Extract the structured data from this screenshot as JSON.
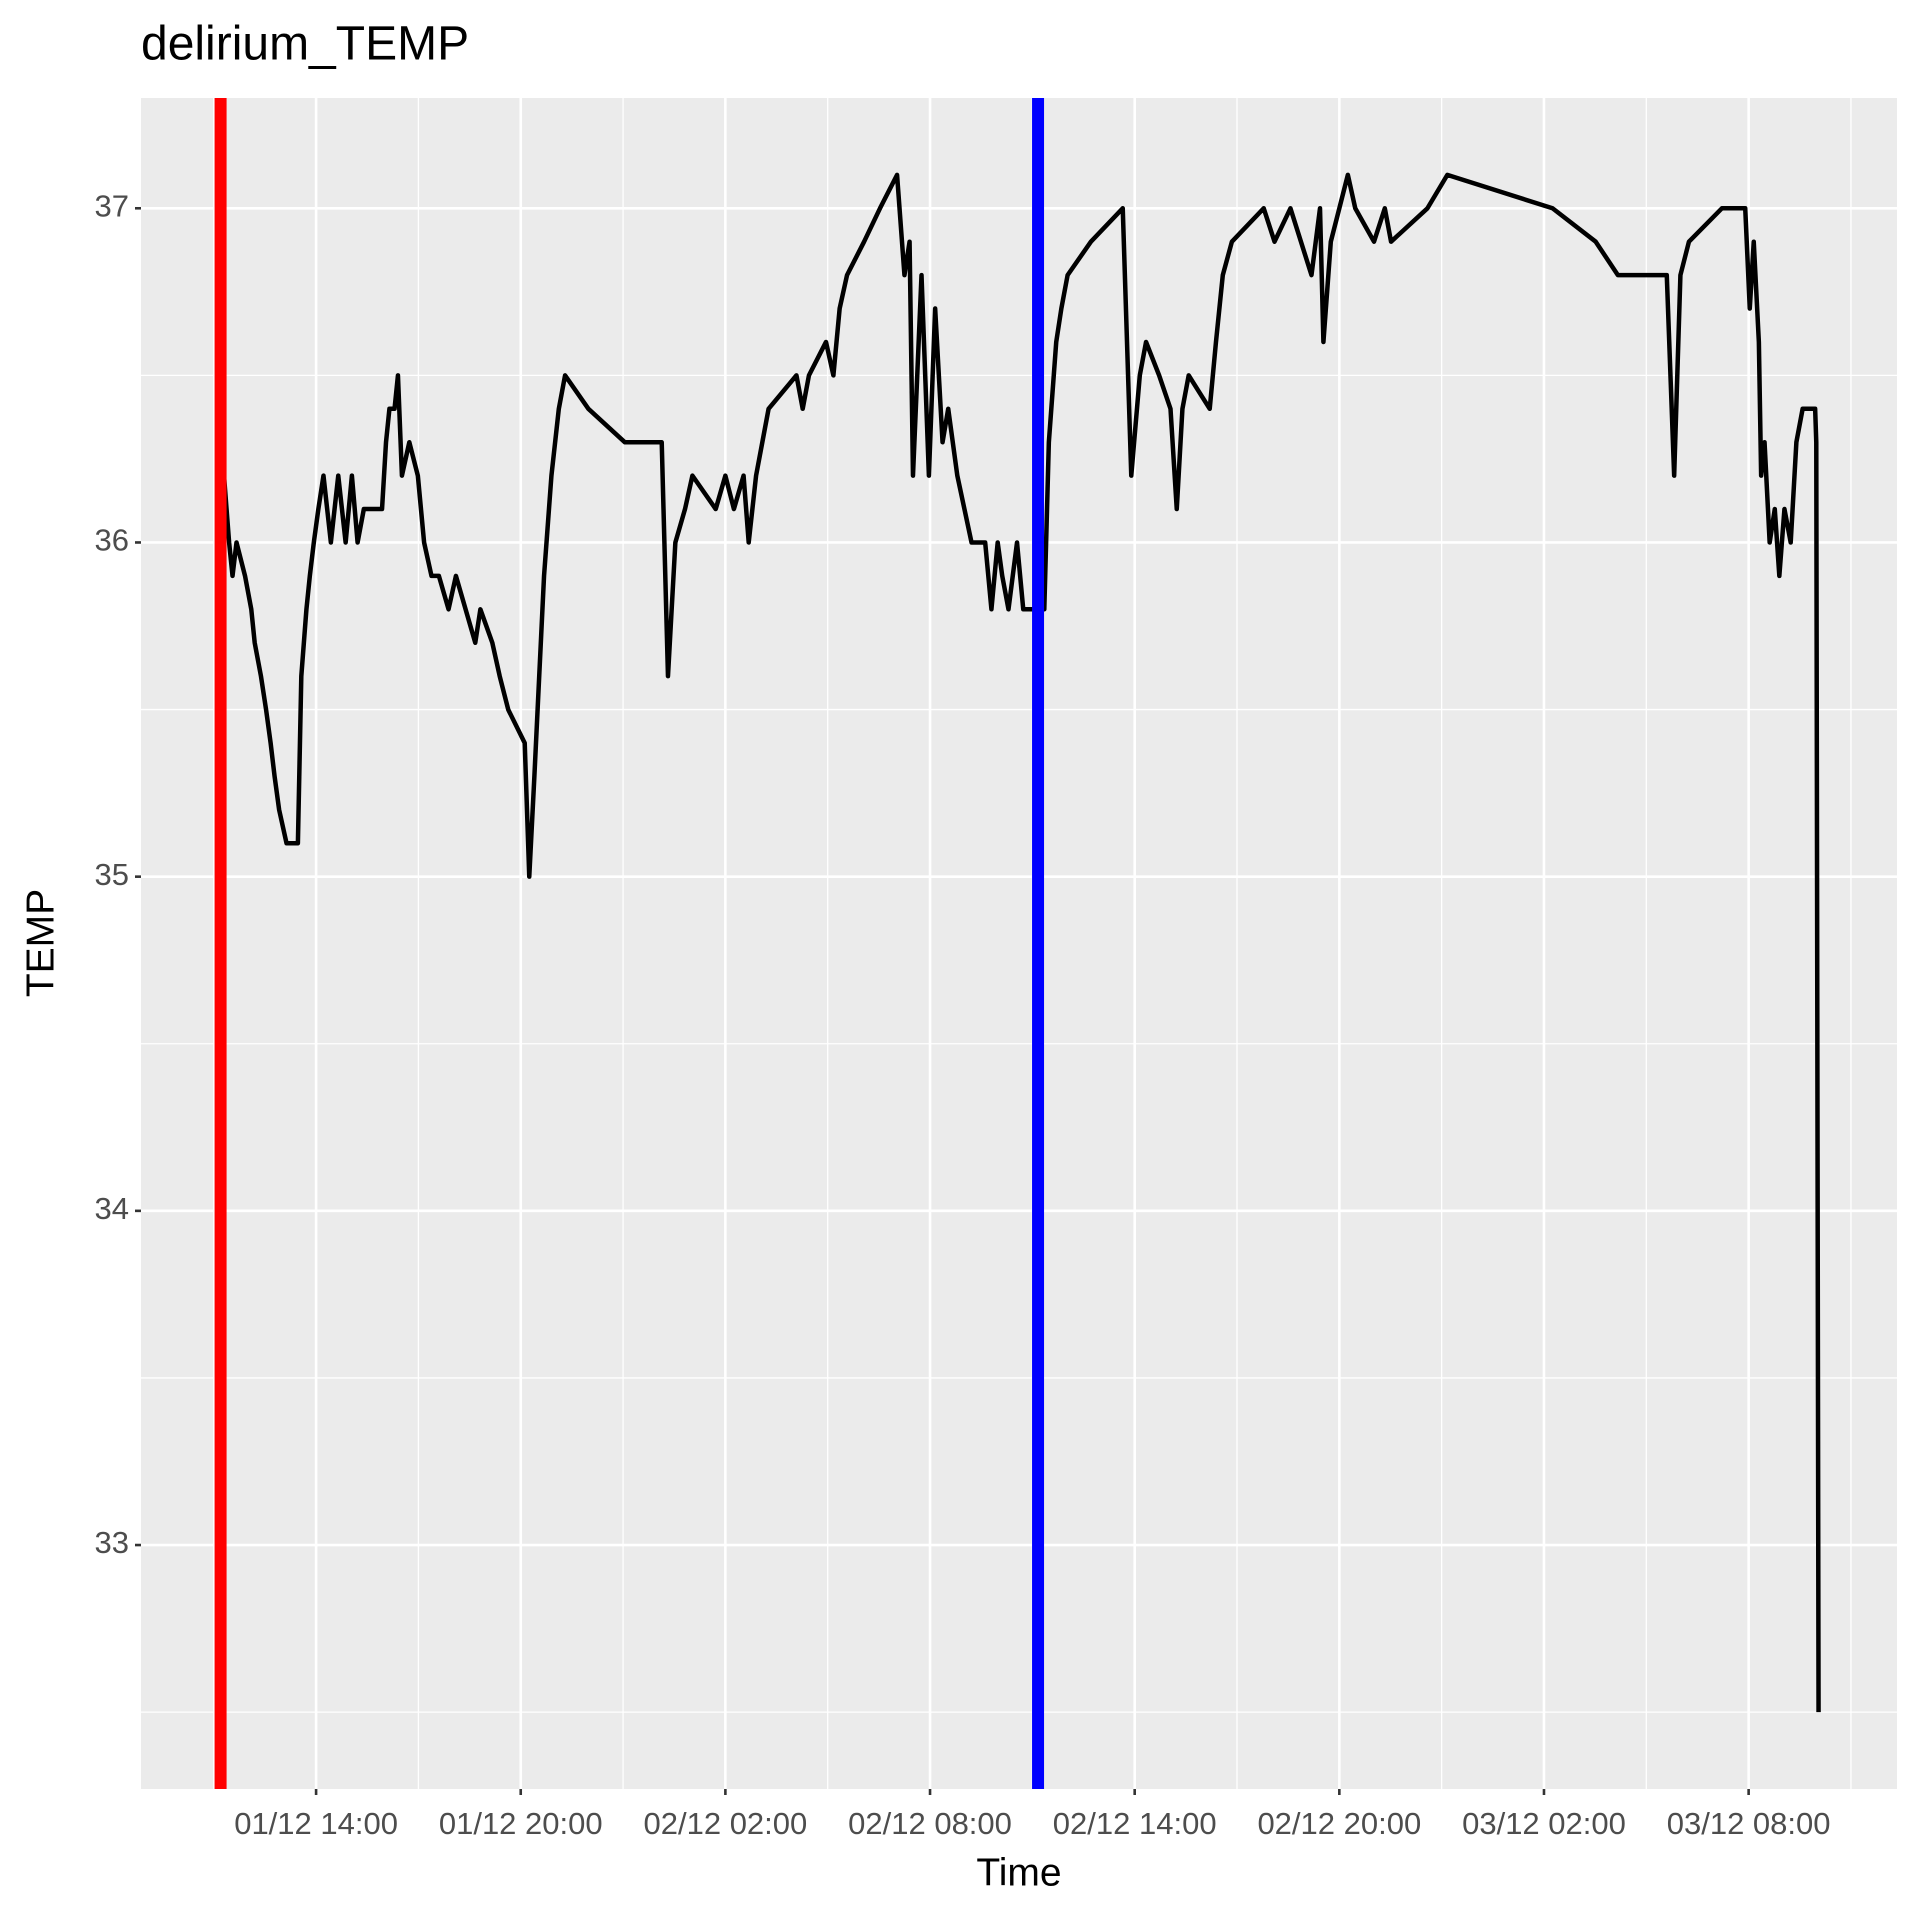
{
  "chart_data": {
    "type": "line",
    "title": "delirium_TEMP",
    "x_label": "Time",
    "y_label": "TEMP",
    "x": [
      "01/12 11:18",
      "01/12 11:27",
      "01/12 11:33",
      "01/12 11:40",
      "01/12 11:55",
      "01/12 12:06",
      "01/12 12:12",
      "01/12 12:23",
      "01/12 12:32",
      "01/12 12:40",
      "01/12 12:47",
      "01/12 12:55",
      "01/12 13:08",
      "01/12 13:28",
      "01/12 13:34",
      "01/12 13:43",
      "01/12 13:49",
      "01/12 13:56",
      "01/12 14:04",
      "01/12 14:13",
      "01/12 14:26",
      "01/12 14:39",
      "01/12 14:52",
      "01/12 15:03",
      "01/12 15:13",
      "01/12 15:24",
      "01/12 15:56",
      "01/12 16:03",
      "01/12 16:09",
      "01/12 16:18",
      "01/12 16:24",
      "01/12 16:31",
      "01/12 16:44",
      "01/12 16:59",
      "01/12 17:10",
      "01/12 17:23",
      "01/12 17:36",
      "01/12 17:53",
      "01/12 18:06",
      "01/12 18:40",
      "01/12 18:49",
      "01/12 19:10",
      "01/12 19:23",
      "01/12 19:38",
      "01/12 20:07",
      "01/12 20:15",
      "01/12 20:24",
      "01/12 20:41",
      "01/12 20:54",
      "01/12 21:07",
      "01/12 21:18",
      "01/12 21:59",
      "01/12 23:03",
      "02/12 00:08",
      "02/12 00:19",
      "02/12 00:32",
      "02/12 00:49",
      "02/12 01:02",
      "02/12 01:43",
      "02/12 02:00",
      "02/12 02:15",
      "02/12 02:32",
      "02/12 02:41",
      "02/12 02:54",
      "02/12 03:05",
      "02/12 03:16",
      "02/12 04:05",
      "02/12 04:16",
      "02/12 04:27",
      "02/12 04:57",
      "02/12 05:10",
      "02/12 05:21",
      "02/12 05:34",
      "02/12 06:04",
      "02/12 06:32",
      "02/12 07:02",
      "02/12 07:15",
      "02/12 07:24",
      "02/12 07:30",
      "02/12 07:45",
      "02/12 07:58",
      "02/12 08:09",
      "02/12 08:22",
      "02/12 08:32",
      "02/12 08:48",
      "02/12 09:13",
      "02/12 09:37",
      "02/12 09:48",
      "02/12 09:59",
      "02/12 10:07",
      "02/12 10:18",
      "02/12 10:33",
      "02/12 10:44",
      "02/12 11:10",
      "02/12 11:21",
      "02/12 11:29",
      "02/12 11:42",
      "02/12 11:51",
      "02/12 12:02",
      "02/12 12:43",
      "02/12 13:39",
      "02/12 13:54",
      "02/12 14:09",
      "02/12 14:20",
      "02/12 14:43",
      "02/12 15:03",
      "02/12 15:14",
      "02/12 15:24",
      "02/12 15:35",
      "02/12 16:12",
      "02/12 16:23",
      "02/12 16:35",
      "02/12 16:51",
      "02/12 17:47",
      "02/12 18:06",
      "02/12 18:34",
      "02/12 19:11",
      "02/12 19:26",
      "02/12 19:32",
      "02/12 19:45",
      "02/12 20:00",
      "02/12 20:15",
      "02/12 20:28",
      "02/12 21:01",
      "02/12 21:20",
      "02/12 21:31",
      "02/12 22:35",
      "02/12 23:10",
      "03/12 02:15",
      "03/12 03:31",
      "03/12 04:10",
      "03/12 05:36",
      "03/12 05:49",
      "03/12 06:00",
      "03/12 06:15",
      "03/12 07:13",
      "03/12 07:54",
      "03/12 08:02",
      "03/12 08:09",
      "03/12 08:18",
      "03/12 08:22",
      "03/12 08:28",
      "03/12 08:37",
      "03/12 08:46",
      "03/12 08:54",
      "03/12 09:03",
      "03/12 09:14",
      "03/12 09:24",
      "03/12 09:35",
      "03/12 09:57",
      "03/12 09:59",
      "03/12 10:01",
      "03/12 10:03"
    ],
    "values": [
      36.2,
      36.0,
      35.9,
      36.0,
      35.9,
      35.8,
      35.7,
      35.6,
      35.5,
      35.4,
      35.3,
      35.2,
      35.1,
      35.1,
      35.6,
      35.8,
      35.9,
      36.0,
      36.1,
      36.2,
      36.0,
      36.2,
      36.0,
      36.2,
      36.0,
      36.1,
      36.1,
      36.3,
      36.4,
      36.4,
      36.5,
      36.2,
      36.3,
      36.2,
      36.0,
      35.9,
      35.9,
      35.8,
      35.9,
      35.7,
      35.8,
      35.7,
      35.6,
      35.5,
      35.4,
      35.0,
      35.3,
      35.9,
      36.2,
      36.4,
      36.5,
      36.4,
      36.3,
      36.3,
      35.6,
      36.0,
      36.1,
      36.2,
      36.1,
      36.2,
      36.1,
      36.2,
      36.0,
      36.2,
      36.3,
      36.4,
      36.5,
      36.4,
      36.5,
      36.6,
      36.5,
      36.7,
      36.8,
      36.9,
      37.0,
      37.1,
      36.8,
      36.9,
      36.2,
      36.8,
      36.2,
      36.7,
      36.3,
      36.4,
      36.2,
      36.0,
      36.0,
      35.8,
      36.0,
      35.9,
      35.8,
      36.0,
      35.8,
      35.8,
      35.8,
      36.3,
      36.6,
      36.7,
      36.8,
      36.9,
      37.0,
      36.2,
      36.5,
      36.6,
      36.5,
      36.4,
      36.1,
      36.4,
      36.5,
      36.4,
      36.6,
      36.8,
      36.9,
      37.0,
      36.9,
      37.0,
      36.8,
      37.0,
      36.6,
      36.9,
      37.0,
      37.1,
      37.0,
      36.9,
      37.0,
      36.9,
      37.0,
      37.1,
      37.0,
      36.9,
      36.8,
      36.8,
      36.2,
      36.8,
      36.9,
      37.0,
      37.0,
      36.7,
      36.9,
      36.6,
      36.2,
      36.3,
      36.0,
      36.1,
      35.9,
      36.1,
      36.0,
      36.3,
      36.4,
      36.4,
      36.3,
      34.4,
      32.5
    ],
    "color": "#000000",
    "vlines": [
      {
        "x": "01/12 11:12",
        "color": "#ff0000"
      },
      {
        "x": "02/12 11:10",
        "color": "#0000ff"
      }
    ],
    "xlim": [
      "01/12 08:52",
      "03/12 12:21"
    ],
    "xticks": [
      "01/12 14:00",
      "01/12 20:00",
      "02/12 02:00",
      "02/12 08:00",
      "02/12 14:00",
      "02/12 20:00",
      "03/12 02:00",
      "03/12 08:00"
    ],
    "ylim": [
      32.27,
      37.33
    ],
    "yticks": [
      33,
      34,
      35,
      36,
      37
    ],
    "grid": true
  }
}
